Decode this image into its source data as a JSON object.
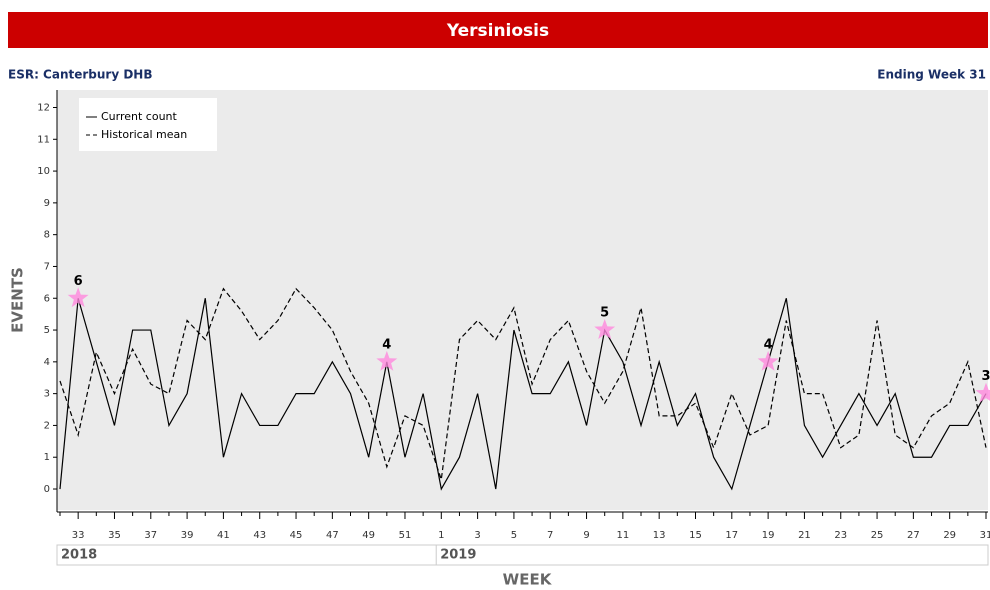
{
  "chart_data": {
    "type": "line",
    "title": "Yersiniosis",
    "subtitle_left": "ESR: Canterbury DHB",
    "subtitle_right": "Ending Week 31",
    "x_label": "WEEK",
    "y_label": "EVENTS",
    "categories": [
      null,
      "33",
      null,
      "35",
      null,
      "37",
      null,
      "39",
      null,
      "41",
      null,
      "43",
      null,
      "45",
      null,
      "47",
      null,
      "49",
      null,
      "51",
      null,
      "1",
      null,
      "3",
      null,
      "5",
      null,
      "7",
      null,
      "9",
      null,
      "11",
      null,
      "13",
      null,
      "15",
      null,
      "17",
      null,
      "19",
      null,
      "21",
      null,
      "23",
      null,
      "25",
      null,
      "27",
      null,
      "29",
      null,
      "31"
    ],
    "x_groups": [
      {
        "label": "2018",
        "categories": 21
      },
      {
        "label": "2019",
        "categories": 31
      }
    ],
    "series": [
      {
        "name": "Current count",
        "color": "#000000",
        "line_style": "solid",
        "values": [
          0,
          6,
          4,
          2,
          5,
          5,
          2,
          3,
          6,
          1,
          3,
          2,
          2,
          3,
          3,
          4,
          3,
          1,
          4,
          1,
          3,
          0,
          1,
          3,
          0,
          5,
          3,
          3,
          4,
          2,
          5,
          4,
          2,
          4,
          2,
          3,
          1,
          0,
          2,
          4,
          6,
          2,
          1,
          2,
          3,
          2,
          3,
          1,
          1,
          2,
          2,
          3
        ],
        "value_labels": [
          null,
          "6",
          null,
          null,
          null,
          null,
          null,
          null,
          null,
          null,
          null,
          null,
          null,
          null,
          null,
          null,
          null,
          null,
          "4",
          null,
          null,
          null,
          null,
          null,
          null,
          null,
          null,
          null,
          null,
          null,
          "5",
          null,
          null,
          null,
          null,
          null,
          null,
          null,
          null,
          "4",
          null,
          null,
          null,
          null,
          null,
          null,
          null,
          null,
          null,
          null,
          null,
          "3"
        ]
      },
      {
        "name": "Historical mean",
        "color": "#000000",
        "line_style": "dashed",
        "values": [
          3.4,
          1.7,
          4.3,
          3.0,
          4.4,
          3.3,
          3.0,
          5.3,
          4.7,
          6.3,
          5.6,
          4.7,
          5.3,
          6.3,
          5.7,
          5.0,
          3.7,
          2.7,
          0.7,
          2.3,
          2.0,
          0.3,
          4.7,
          5.3,
          4.7,
          5.7,
          3.3,
          4.7,
          5.3,
          3.7,
          2.7,
          3.7,
          5.7,
          2.3,
          2.3,
          2.7,
          1.3,
          3.0,
          1.7,
          2.0,
          5.3,
          3.0,
          3.0,
          1.3,
          1.7,
          5.3,
          1.7,
          1.3,
          2.3,
          2.7,
          4.0,
          1.3
        ]
      }
    ],
    "highlight_color": "#ff88dd",
    "ylim": [
      -0.66,
      12.55
    ],
    "yticks": [
      0,
      1,
      2,
      3,
      4,
      5,
      6,
      7,
      8,
      9,
      10,
      11,
      12
    ],
    "grid": false,
    "legend": "top-left",
    "plot_background": "#ebebeb",
    "title_background": "#cc0000"
  }
}
